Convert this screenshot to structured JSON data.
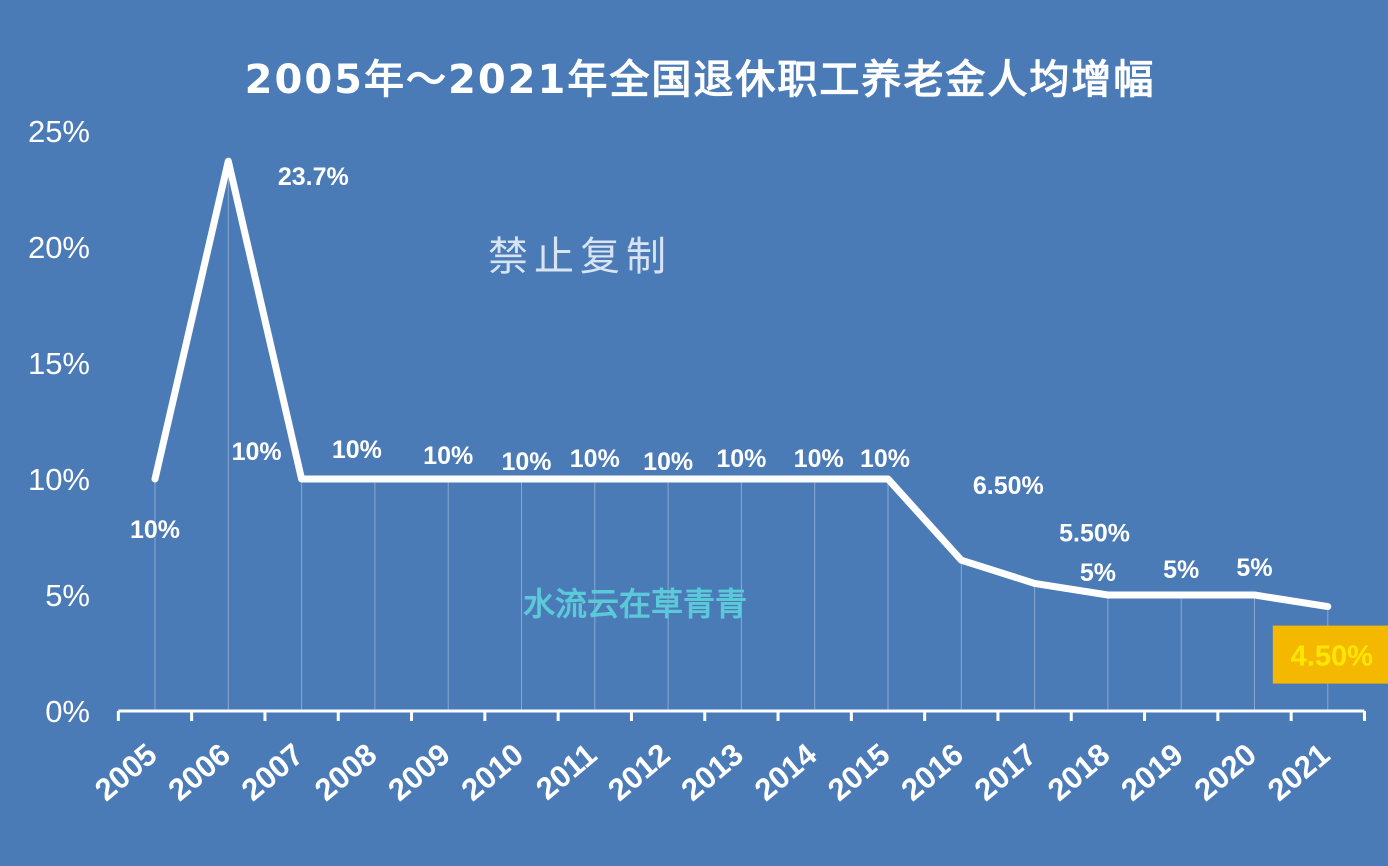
{
  "chart_data": {
    "type": "line",
    "title": "2005年～2021年全国退休职工养老金人均增幅",
    "xlabel": "",
    "ylabel": "",
    "categories": [
      "2005",
      "2006",
      "2007",
      "2008",
      "2009",
      "2010",
      "2011",
      "2012",
      "2013",
      "2014",
      "2015",
      "2016",
      "2017",
      "2018",
      "2019",
      "2020",
      "2021"
    ],
    "values": [
      10,
      23.7,
      10,
      10,
      10,
      10,
      10,
      10,
      10,
      10,
      10,
      6.5,
      5.5,
      5,
      5,
      5,
      4.5
    ],
    "data_labels": [
      "10%",
      "23.7%",
      "10%",
      "10%",
      "10%",
      "10%",
      "10%",
      "10%",
      "10%",
      "10%",
      "10%",
      "6.50%",
      "5.50%",
      "5%",
      "5%",
      "5%",
      "4.50%"
    ],
    "highlight_index": 16,
    "ylim": [
      0,
      25
    ],
    "yticks": [
      0,
      5,
      10,
      15,
      20,
      25
    ],
    "ytick_labels": [
      "0%",
      "5%",
      "10%",
      "15%",
      "20%",
      "25%"
    ],
    "grid": "vertical",
    "colors": {
      "background": "#4a7bb7",
      "line": "#ffffff",
      "highlight_bg": "#f5b800",
      "highlight_text": "#ffe600"
    }
  },
  "watermarks": [
    "禁止复制",
    "水流云在草青青"
  ]
}
